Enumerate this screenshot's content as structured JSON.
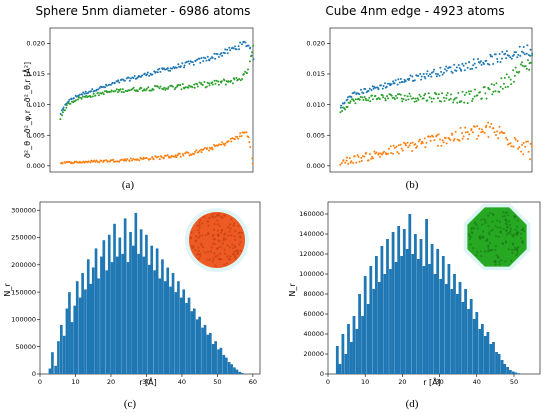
{
  "chart_data": [
    {
      "id": "a",
      "type": "scatter",
      "title": "Sphere 5nm diameter - 6986 atoms",
      "ylabel": "σ̄²_θ , σ̄²_φ,r , σ̄²_θ,r  [Å²]",
      "ylim": [
        -0.001,
        0.0225
      ],
      "yticks": [
        "0.000",
        "0.005",
        "0.010",
        "0.015",
        "0.020"
      ],
      "yticks_v": [
        0,
        0.005,
        0.01,
        0.015,
        0.02
      ],
      "x_range": [
        0,
        58
      ],
      "panel_label": "(a)",
      "series": [
        {
          "color": "#1f77b4",
          "points": [
            [
              3,
              0.0085
            ],
            [
              5,
              0.0105
            ],
            [
              8,
              0.0115
            ],
            [
              12,
              0.0123
            ],
            [
              16,
              0.013
            ],
            [
              20,
              0.0138
            ],
            [
              25,
              0.0145
            ],
            [
              30,
              0.0153
            ],
            [
              35,
              0.016
            ],
            [
              40,
              0.0167
            ],
            [
              45,
              0.0175
            ],
            [
              50,
              0.0185
            ],
            [
              53,
              0.0193
            ],
            [
              55,
              0.0198
            ],
            [
              56,
              0.02
            ],
            [
              57,
              0.0195
            ],
            [
              58,
              0.0175
            ]
          ],
          "spread": 0.0004
        },
        {
          "color": "#2ca02c",
          "points": [
            [
              3,
              0.0078
            ],
            [
              5,
              0.01
            ],
            [
              8,
              0.011
            ],
            [
              12,
              0.0115
            ],
            [
              16,
              0.012
            ],
            [
              20,
              0.0123
            ],
            [
              25,
              0.0125
            ],
            [
              30,
              0.0127
            ],
            [
              35,
              0.0128
            ],
            [
              40,
              0.013
            ],
            [
              45,
              0.0133
            ],
            [
              50,
              0.0137
            ],
            [
              53,
              0.014
            ],
            [
              55,
              0.0145
            ],
            [
              56,
              0.015
            ],
            [
              57,
              0.017
            ],
            [
              58,
              0.0195
            ]
          ],
          "spread": 0.0004
        },
        {
          "color": "#ff7f0e",
          "points": [
            [
              3,
              0.0005
            ],
            [
              8,
              0.0006
            ],
            [
              12,
              0.0007
            ],
            [
              16,
              0.0008
            ],
            [
              20,
              0.0009
            ],
            [
              25,
              0.0011
            ],
            [
              30,
              0.0013
            ],
            [
              35,
              0.0016
            ],
            [
              40,
              0.002
            ],
            [
              45,
              0.0027
            ],
            [
              50,
              0.0037
            ],
            [
              53,
              0.0045
            ],
            [
              55,
              0.0052
            ],
            [
              56,
              0.0056
            ],
            [
              57,
              0.004
            ],
            [
              58,
              0.0005
            ]
          ],
          "spread": 0.0003
        }
      ]
    },
    {
      "id": "b",
      "type": "scatter",
      "title": "Cube 4nm edge - 4923 atoms",
      "ylim": [
        -0.001,
        0.0225
      ],
      "yticks": [
        "0.000",
        "0.005",
        "0.010",
        "0.015",
        "0.020"
      ],
      "yticks_v": [
        0,
        0.005,
        0.01,
        0.015,
        0.02
      ],
      "x_range": [
        0,
        58
      ],
      "panel_label": "(b)",
      "series": [
        {
          "color": "#1f77b4",
          "points": [
            [
              3,
              0.0095
            ],
            [
              6,
              0.0115
            ],
            [
              10,
              0.0123
            ],
            [
              15,
              0.013
            ],
            [
              20,
              0.0138
            ],
            [
              25,
              0.0145
            ],
            [
              30,
              0.0152
            ],
            [
              35,
              0.0158
            ],
            [
              40,
              0.0165
            ],
            [
              45,
              0.0172
            ],
            [
              50,
              0.0178
            ],
            [
              54,
              0.0185
            ],
            [
              57,
              0.019
            ],
            [
              58,
              0.0185
            ]
          ],
          "spread": 0.0007
        },
        {
          "color": "#2ca02c",
          "points": [
            [
              3,
              0.009
            ],
            [
              6,
              0.0105
            ],
            [
              10,
              0.011
            ],
            [
              15,
              0.0112
            ],
            [
              20,
              0.0112
            ],
            [
              25,
              0.0112
            ],
            [
              30,
              0.0113
            ],
            [
              35,
              0.0112
            ],
            [
              40,
              0.0112
            ],
            [
              45,
              0.012
            ],
            [
              50,
              0.0135
            ],
            [
              54,
              0.0155
            ],
            [
              57,
              0.0165
            ],
            [
              58,
              0.0175
            ]
          ],
          "spread": 0.0009
        },
        {
          "color": "#ff7f0e",
          "points": [
            [
              3,
              0.0006
            ],
            [
              8,
              0.0012
            ],
            [
              13,
              0.0018
            ],
            [
              18,
              0.0025
            ],
            [
              23,
              0.0032
            ],
            [
              28,
              0.004
            ],
            [
              33,
              0.0045
            ],
            [
              38,
              0.005
            ],
            [
              42,
              0.0055
            ],
            [
              46,
              0.0058
            ],
            [
              50,
              0.005
            ],
            [
              54,
              0.004
            ],
            [
              57,
              0.0028
            ],
            [
              58,
              0.002
            ]
          ],
          "spread": 0.0012
        }
      ]
    },
    {
      "id": "c",
      "type": "bar",
      "xlabel": "r  [Å]",
      "ylabel": "N_r",
      "xlim": [
        0,
        62
      ],
      "ylim": [
        0,
        315000
      ],
      "xticks": [
        0,
        10,
        20,
        30,
        40,
        50,
        60
      ],
      "yticks_v": [
        0,
        50000,
        100000,
        150000,
        200000,
        250000,
        300000
      ],
      "yticks": [
        "0",
        "50000",
        "100000",
        "150000",
        "200000",
        "250000",
        "300000"
      ],
      "color": "#1f77b4",
      "panel_label": "(c)",
      "inset_color": "#ee5a24",
      "bars": [
        [
          2.8,
          10000
        ],
        [
          3.5,
          40000
        ],
        [
          4.4,
          15000
        ],
        [
          5.2,
          60000
        ],
        [
          6,
          90000
        ],
        [
          6.8,
          70000
        ],
        [
          7.6,
          120000
        ],
        [
          8.3,
          150000
        ],
        [
          9,
          95000
        ],
        [
          9.8,
          125000
        ],
        [
          10.5,
          170000
        ],
        [
          11.3,
          140000
        ],
        [
          12,
          185000
        ],
        [
          12.8,
          155000
        ],
        [
          13.6,
          210000
        ],
        [
          14.3,
          165000
        ],
        [
          15,
          195000
        ],
        [
          15.8,
          230000
        ],
        [
          16.5,
          175000
        ],
        [
          17.3,
          215000
        ],
        [
          18,
          245000
        ],
        [
          18.8,
          190000
        ],
        [
          19.5,
          255000
        ],
        [
          20.3,
          205000
        ],
        [
          21,
          275000
        ],
        [
          21.8,
          215000
        ],
        [
          22.5,
          250000
        ],
        [
          23.3,
          220000
        ],
        [
          24,
          285000
        ],
        [
          24.8,
          205000
        ],
        [
          25.5,
          260000
        ],
        [
          26.3,
          235000
        ],
        [
          27,
          295000
        ],
        [
          27.8,
          220000
        ],
        [
          28.5,
          265000
        ],
        [
          29.3,
          215000
        ],
        [
          30,
          255000
        ],
        [
          30.8,
          200000
        ],
        [
          31.5,
          235000
        ],
        [
          32.3,
          190000
        ],
        [
          33,
          230000
        ],
        [
          33.8,
          175000
        ],
        [
          34.5,
          210000
        ],
        [
          35.3,
          170000
        ],
        [
          36,
          195000
        ],
        [
          36.8,
          160000
        ],
        [
          37.5,
          185000
        ],
        [
          38.3,
          150000
        ],
        [
          39,
          170000
        ],
        [
          39.8,
          140000
        ],
        [
          40.5,
          155000
        ],
        [
          41.3,
          130000
        ],
        [
          42,
          140000
        ],
        [
          42.8,
          115000
        ],
        [
          43.5,
          120000
        ],
        [
          44.3,
          100000
        ],
        [
          45,
          105000
        ],
        [
          45.8,
          85000
        ],
        [
          46.5,
          90000
        ],
        [
          47.3,
          72000
        ],
        [
          48,
          75000
        ],
        [
          48.8,
          55000
        ],
        [
          49.5,
          60000
        ],
        [
          50.3,
          45000
        ],
        [
          51,
          48000
        ],
        [
          51.8,
          35000
        ],
        [
          52.5,
          30000
        ],
        [
          53.3,
          22000
        ],
        [
          54,
          18000
        ],
        [
          54.8,
          12000
        ],
        [
          55.5,
          8000
        ],
        [
          56.3,
          4000
        ],
        [
          57,
          2000
        ]
      ]
    },
    {
      "id": "d",
      "type": "bar",
      "xlabel": "r  [Å]",
      "ylabel": "N_r",
      "xlim": [
        0,
        57
      ],
      "ylim": [
        0,
        172000
      ],
      "xticks": [
        0,
        10,
        20,
        30,
        40,
        50
      ],
      "yticks_v": [
        0,
        20000,
        40000,
        60000,
        80000,
        100000,
        120000,
        140000,
        160000
      ],
      "yticks": [
        "0",
        "20000",
        "40000",
        "60000",
        "80000",
        "100000",
        "120000",
        "140000",
        "160000"
      ],
      "color": "#1f77b4",
      "panel_label": "(d)",
      "inset_color": "#27a822",
      "bars": [
        [
          2.5,
          28000
        ],
        [
          3.2,
          10000
        ],
        [
          4,
          40000
        ],
        [
          4.8,
          20000
        ],
        [
          5.5,
          50000
        ],
        [
          6.3,
          32000
        ],
        [
          7,
          58000
        ],
        [
          7.8,
          45000
        ],
        [
          8.5,
          80000
        ],
        [
          9.3,
          58000
        ],
        [
          10,
          98000
        ],
        [
          10.8,
          70000
        ],
        [
          11.5,
          108000
        ],
        [
          12.3,
          85000
        ],
        [
          13,
          118000
        ],
        [
          13.8,
          92000
        ],
        [
          14.5,
          128000
        ],
        [
          15.3,
          100000
        ],
        [
          16,
          135000
        ],
        [
          16.8,
          105000
        ],
        [
          17.5,
          142000
        ],
        [
          18.3,
          112000
        ],
        [
          19,
          148000
        ],
        [
          19.8,
          118000
        ],
        [
          20.5,
          145000
        ],
        [
          21.3,
          125000
        ],
        [
          22,
          160000
        ],
        [
          22.8,
          120000
        ],
        [
          23.5,
          140000
        ],
        [
          24.3,
          115000
        ],
        [
          25,
          135000
        ],
        [
          25.8,
          108000
        ],
        [
          26.5,
          155000
        ],
        [
          27.3,
          110000
        ],
        [
          28,
          130000
        ],
        [
          28.8,
          100000
        ],
        [
          29.5,
          125000
        ],
        [
          30.3,
          95000
        ],
        [
          31,
          118000
        ],
        [
          31.8,
          90000
        ],
        [
          32.5,
          110000
        ],
        [
          33.3,
          85000
        ],
        [
          34,
          100000
        ],
        [
          34.8,
          80000
        ],
        [
          35.5,
          92000
        ],
        [
          36.3,
          72000
        ],
        [
          37,
          85000
        ],
        [
          37.8,
          65000
        ],
        [
          38.5,
          75000
        ],
        [
          39.3,
          55000
        ],
        [
          40,
          62000
        ],
        [
          40.8,
          45000
        ],
        [
          41.5,
          50000
        ],
        [
          42.3,
          38000
        ],
        [
          43,
          42000
        ],
        [
          43.8,
          30000
        ],
        [
          44.5,
          32000
        ],
        [
          45.3,
          22000
        ],
        [
          46,
          20000
        ],
        [
          46.8,
          14000
        ],
        [
          47.5,
          10000
        ],
        [
          48.3,
          7000
        ],
        [
          49,
          4000
        ],
        [
          49.8,
          2500
        ],
        [
          50.5,
          1500
        ],
        [
          51.3,
          800
        ]
      ]
    }
  ]
}
